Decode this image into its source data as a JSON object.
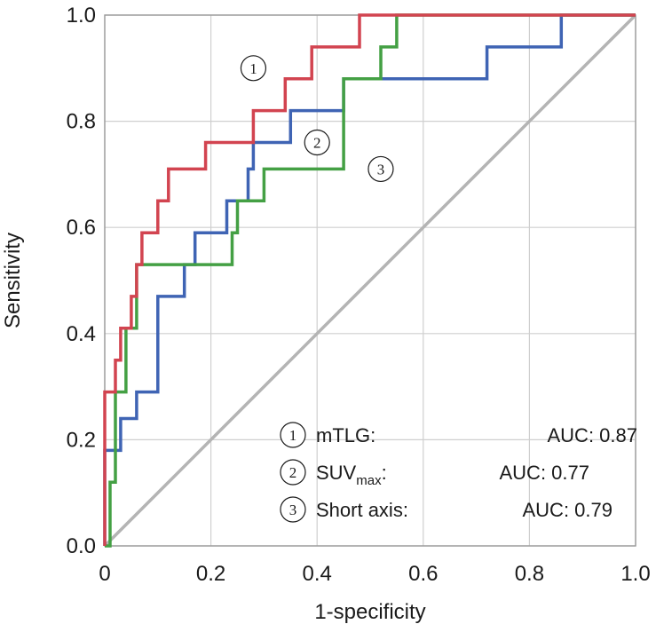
{
  "chart_data": {
    "type": "line",
    "xlabel": "1-specificity",
    "ylabel": "Sensitivity",
    "xlim": [
      0,
      1
    ],
    "ylim": [
      0,
      1
    ],
    "xticks": [
      "0",
      "0.2",
      "0.4",
      "0.6",
      "0.8",
      "1.0"
    ],
    "yticks": [
      "0.0",
      "0.2",
      "0.4",
      "0.6",
      "0.8",
      "1.0"
    ],
    "grid": true,
    "legend_position": "bottom-right",
    "reference_line": {
      "x": [
        0,
        1
      ],
      "y": [
        0,
        1
      ],
      "color": "#b4b4b4"
    },
    "series": [
      {
        "id": "1",
        "marker": "①",
        "name": "mTLG:",
        "auc": "AUC: 0.87",
        "color": "#d24450",
        "x": [
          0,
          0,
          0.02,
          0.02,
          0.03,
          0.03,
          0.05,
          0.05,
          0.06,
          0.06,
          0.07,
          0.07,
          0.1,
          0.1,
          0.12,
          0.12,
          0.19,
          0.19,
          0.28,
          0.28,
          0.34,
          0.34,
          0.39,
          0.39,
          0.48,
          0.48,
          1.0
        ],
        "y": [
          0,
          0.29,
          0.29,
          0.35,
          0.35,
          0.41,
          0.41,
          0.47,
          0.47,
          0.53,
          0.53,
          0.59,
          0.59,
          0.65,
          0.65,
          0.71,
          0.71,
          0.76,
          0.76,
          0.82,
          0.82,
          0.88,
          0.88,
          0.94,
          0.94,
          1.0,
          1.0
        ]
      },
      {
        "id": "2",
        "marker": "②",
        "name": "SUVmax:",
        "name_main": "SUV",
        "name_sub": "max",
        "name_suffix": ":",
        "auc": "AUC: 0.77",
        "color": "#3f64b4",
        "x": [
          0,
          0,
          0.03,
          0.03,
          0.06,
          0.06,
          0.1,
          0.1,
          0.15,
          0.15,
          0.17,
          0.17,
          0.23,
          0.23,
          0.27,
          0.27,
          0.28,
          0.28,
          0.35,
          0.35,
          0.45,
          0.45,
          0.72,
          0.72,
          0.86,
          0.86,
          1.0
        ],
        "y": [
          0,
          0.18,
          0.18,
          0.24,
          0.24,
          0.29,
          0.29,
          0.47,
          0.47,
          0.53,
          0.53,
          0.59,
          0.59,
          0.65,
          0.65,
          0.71,
          0.71,
          0.76,
          0.76,
          0.82,
          0.82,
          0.88,
          0.88,
          0.94,
          0.94,
          1.0,
          1.0
        ]
      },
      {
        "id": "3",
        "marker": "③",
        "name": "Short axis:",
        "auc": "AUC: 0.79",
        "color": "#44a044",
        "x": [
          0,
          0.01,
          0.01,
          0.02,
          0.02,
          0.04,
          0.04,
          0.06,
          0.06,
          0.24,
          0.24,
          0.25,
          0.25,
          0.3,
          0.3,
          0.45,
          0.45,
          0.52,
          0.52,
          0.55,
          0.55,
          1.0
        ],
        "y": [
          0,
          0,
          0.12,
          0.12,
          0.29,
          0.29,
          0.41,
          0.41,
          0.53,
          0.53,
          0.59,
          0.59,
          0.65,
          0.65,
          0.71,
          0.71,
          0.88,
          0.88,
          0.94,
          0.94,
          1.0,
          1.0
        ]
      }
    ],
    "annotations": [
      {
        "text": "①",
        "x": 0.28,
        "y": 0.9
      },
      {
        "text": "②",
        "x": 0.4,
        "y": 0.76
      },
      {
        "text": "③",
        "x": 0.52,
        "y": 0.71
      }
    ]
  }
}
